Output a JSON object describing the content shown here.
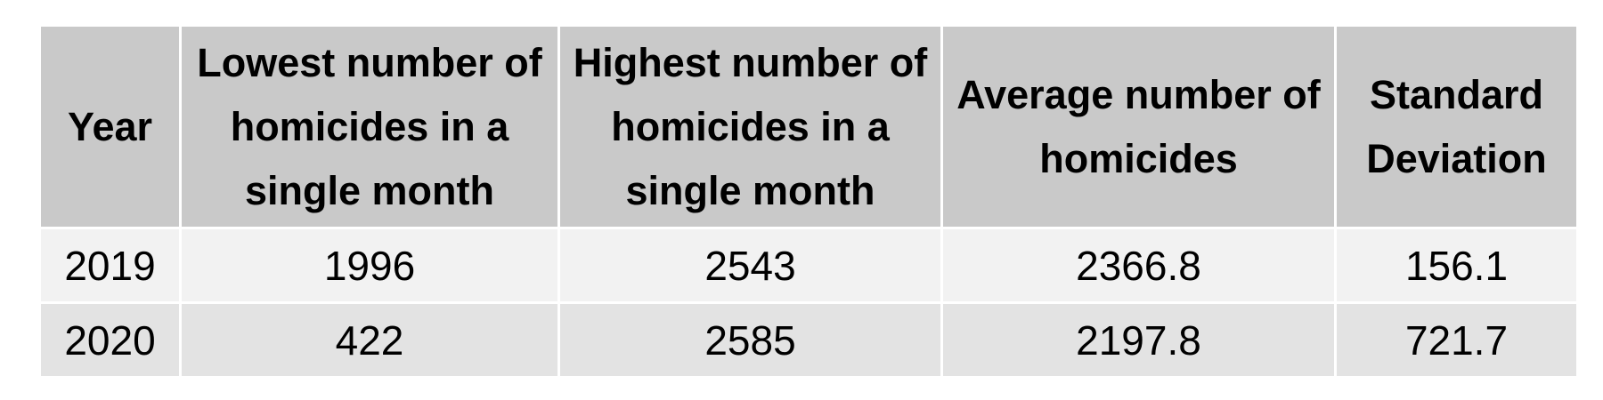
{
  "chart_data": {
    "type": "table",
    "columns": [
      "Year",
      "Lowest number of homicides in a single month",
      "Highest number of homicides in a single month",
      "Average number of homicides",
      "Standard Deviation"
    ],
    "rows": [
      [
        "2019",
        "1996",
        "2543",
        "2366.8",
        "156.1"
      ],
      [
        "2020",
        "422",
        "2585",
        "2197.8",
        "721.7"
      ]
    ]
  },
  "colors": {
    "header_bg": "#c9c9c9",
    "row_odd_bg": "#f2f2f2",
    "row_even_bg": "#e3e3e3",
    "border": "#ffffff",
    "text": "#000000"
  }
}
